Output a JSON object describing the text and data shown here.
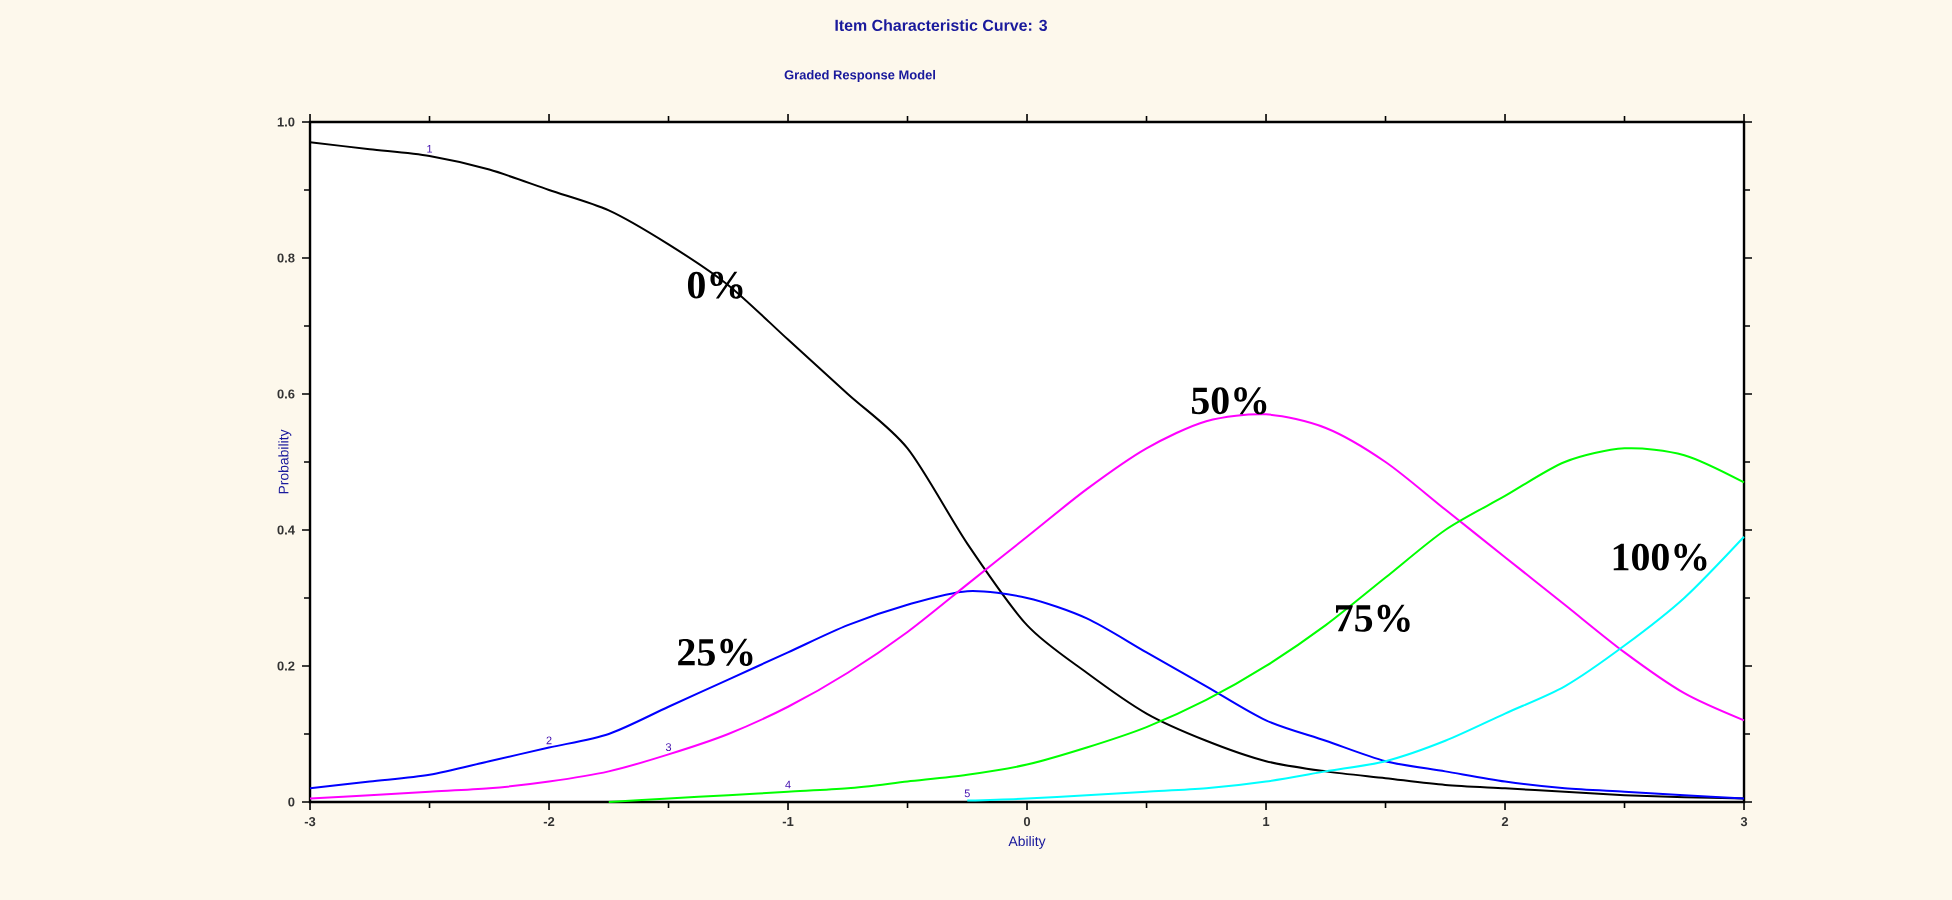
{
  "chart_data": {
    "type": "line",
    "title": "Item Characteristic Curve: 3",
    "subtitle": "Graded Response Model",
    "xlabel": "Ability",
    "ylabel": "Probability",
    "x": [
      -3,
      -2.75,
      -2.5,
      -2.25,
      -2,
      -1.75,
      -1.5,
      -1.25,
      -1,
      -0.75,
      -0.5,
      -0.25,
      0,
      0.25,
      0.5,
      0.75,
      1,
      1.25,
      1.5,
      1.75,
      2,
      2.25,
      2.5,
      2.75,
      3
    ],
    "series": [
      {
        "name": "1",
        "color": "#000000",
        "values": [
          0.97,
          0.96,
          0.95,
          0.93,
          0.9,
          0.87,
          0.82,
          0.76,
          0.68,
          0.6,
          0.52,
          0.38,
          0.26,
          0.19,
          0.13,
          0.09,
          0.06,
          0.045,
          0.035,
          0.025,
          0.02,
          0.015,
          0.01,
          0.007,
          0.005
        ]
      },
      {
        "name": "2",
        "color": "#0000ff",
        "values": [
          0.02,
          0.03,
          0.04,
          0.06,
          0.08,
          0.1,
          0.14,
          0.18,
          0.22,
          0.26,
          0.29,
          0.31,
          0.3,
          0.27,
          0.22,
          0.17,
          0.12,
          0.09,
          0.06,
          0.045,
          0.03,
          0.02,
          0.015,
          0.01,
          0.005
        ]
      },
      {
        "name": "3",
        "color": "#ff00ff",
        "values": [
          0.005,
          0.01,
          0.015,
          0.02,
          0.03,
          0.045,
          0.07,
          0.1,
          0.14,
          0.19,
          0.25,
          0.32,
          0.39,
          0.46,
          0.52,
          0.56,
          0.57,
          0.55,
          0.5,
          0.43,
          0.36,
          0.29,
          0.22,
          0.16,
          0.12
        ]
      },
      {
        "name": "4",
        "color": "#00ff00",
        "values": [
          null,
          null,
          null,
          null,
          null,
          0,
          0.005,
          0.01,
          0.015,
          0.02,
          0.03,
          0.04,
          0.055,
          0.08,
          0.11,
          0.15,
          0.2,
          0.26,
          0.33,
          0.4,
          0.45,
          0.5,
          0.52,
          0.51,
          0.47
        ]
      },
      {
        "name": "5",
        "color": "#00ffff",
        "values": [
          null,
          null,
          null,
          null,
          null,
          null,
          null,
          null,
          null,
          null,
          null,
          0.002,
          0.005,
          0.01,
          0.015,
          0.02,
          0.03,
          0.045,
          0.06,
          0.09,
          0.13,
          0.17,
          0.23,
          0.3,
          0.39
        ]
      }
    ],
    "xlim": [
      -3,
      3
    ],
    "xticks": [
      -3,
      -2,
      -1,
      0,
      1,
      2,
      3
    ],
    "ylim": [
      0,
      1
    ],
    "yticks": [
      0,
      0.2,
      0.4,
      0.6,
      0.8,
      {
        "value": 1,
        "label": "1.0"
      }
    ],
    "annotations": [
      "0%",
      "25%",
      "50%",
      "75%",
      "100%"
    ],
    "legend": false,
    "grid": false,
    "marker": "none",
    "line_style": "solid"
  }
}
